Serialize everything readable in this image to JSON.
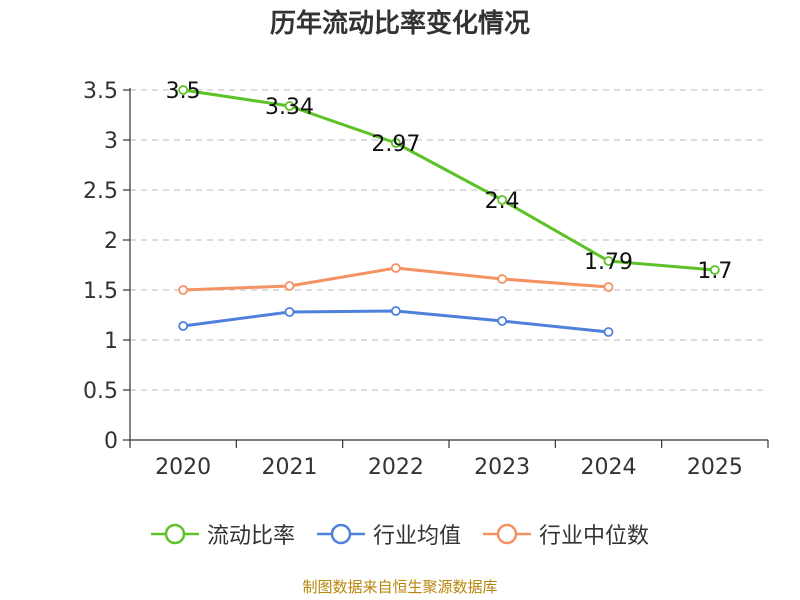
{
  "chart_data": {
    "type": "line",
    "title": "历年流动比率变化情况",
    "categories": [
      "2020",
      "2021",
      "2022",
      "2023",
      "2024",
      "2025"
    ],
    "ylim": [
      0,
      3.5
    ],
    "yticks": [
      "0",
      "0.5",
      "1",
      "1.5",
      "2",
      "2.5",
      "3",
      "3.5"
    ],
    "grid": true,
    "legend_position": "bottom",
    "series": [
      {
        "name": "流动比率",
        "color": "#5cc228",
        "values": [
          3.5,
          3.34,
          2.97,
          2.4,
          1.79,
          1.7
        ],
        "labels": [
          "3.5",
          "3.34",
          "2.97",
          "2.4",
          "1.79",
          "1.7"
        ]
      },
      {
        "name": "行业均值",
        "color": "#4f81dc",
        "values": [
          1.14,
          1.28,
          1.29,
          1.19,
          1.08,
          null
        ]
      },
      {
        "name": "行业中位数",
        "color": "#f59263",
        "values": [
          1.5,
          1.54,
          1.72,
          1.61,
          1.53,
          null
        ]
      }
    ],
    "source": "制图数据来自恒生聚源数据库"
  }
}
